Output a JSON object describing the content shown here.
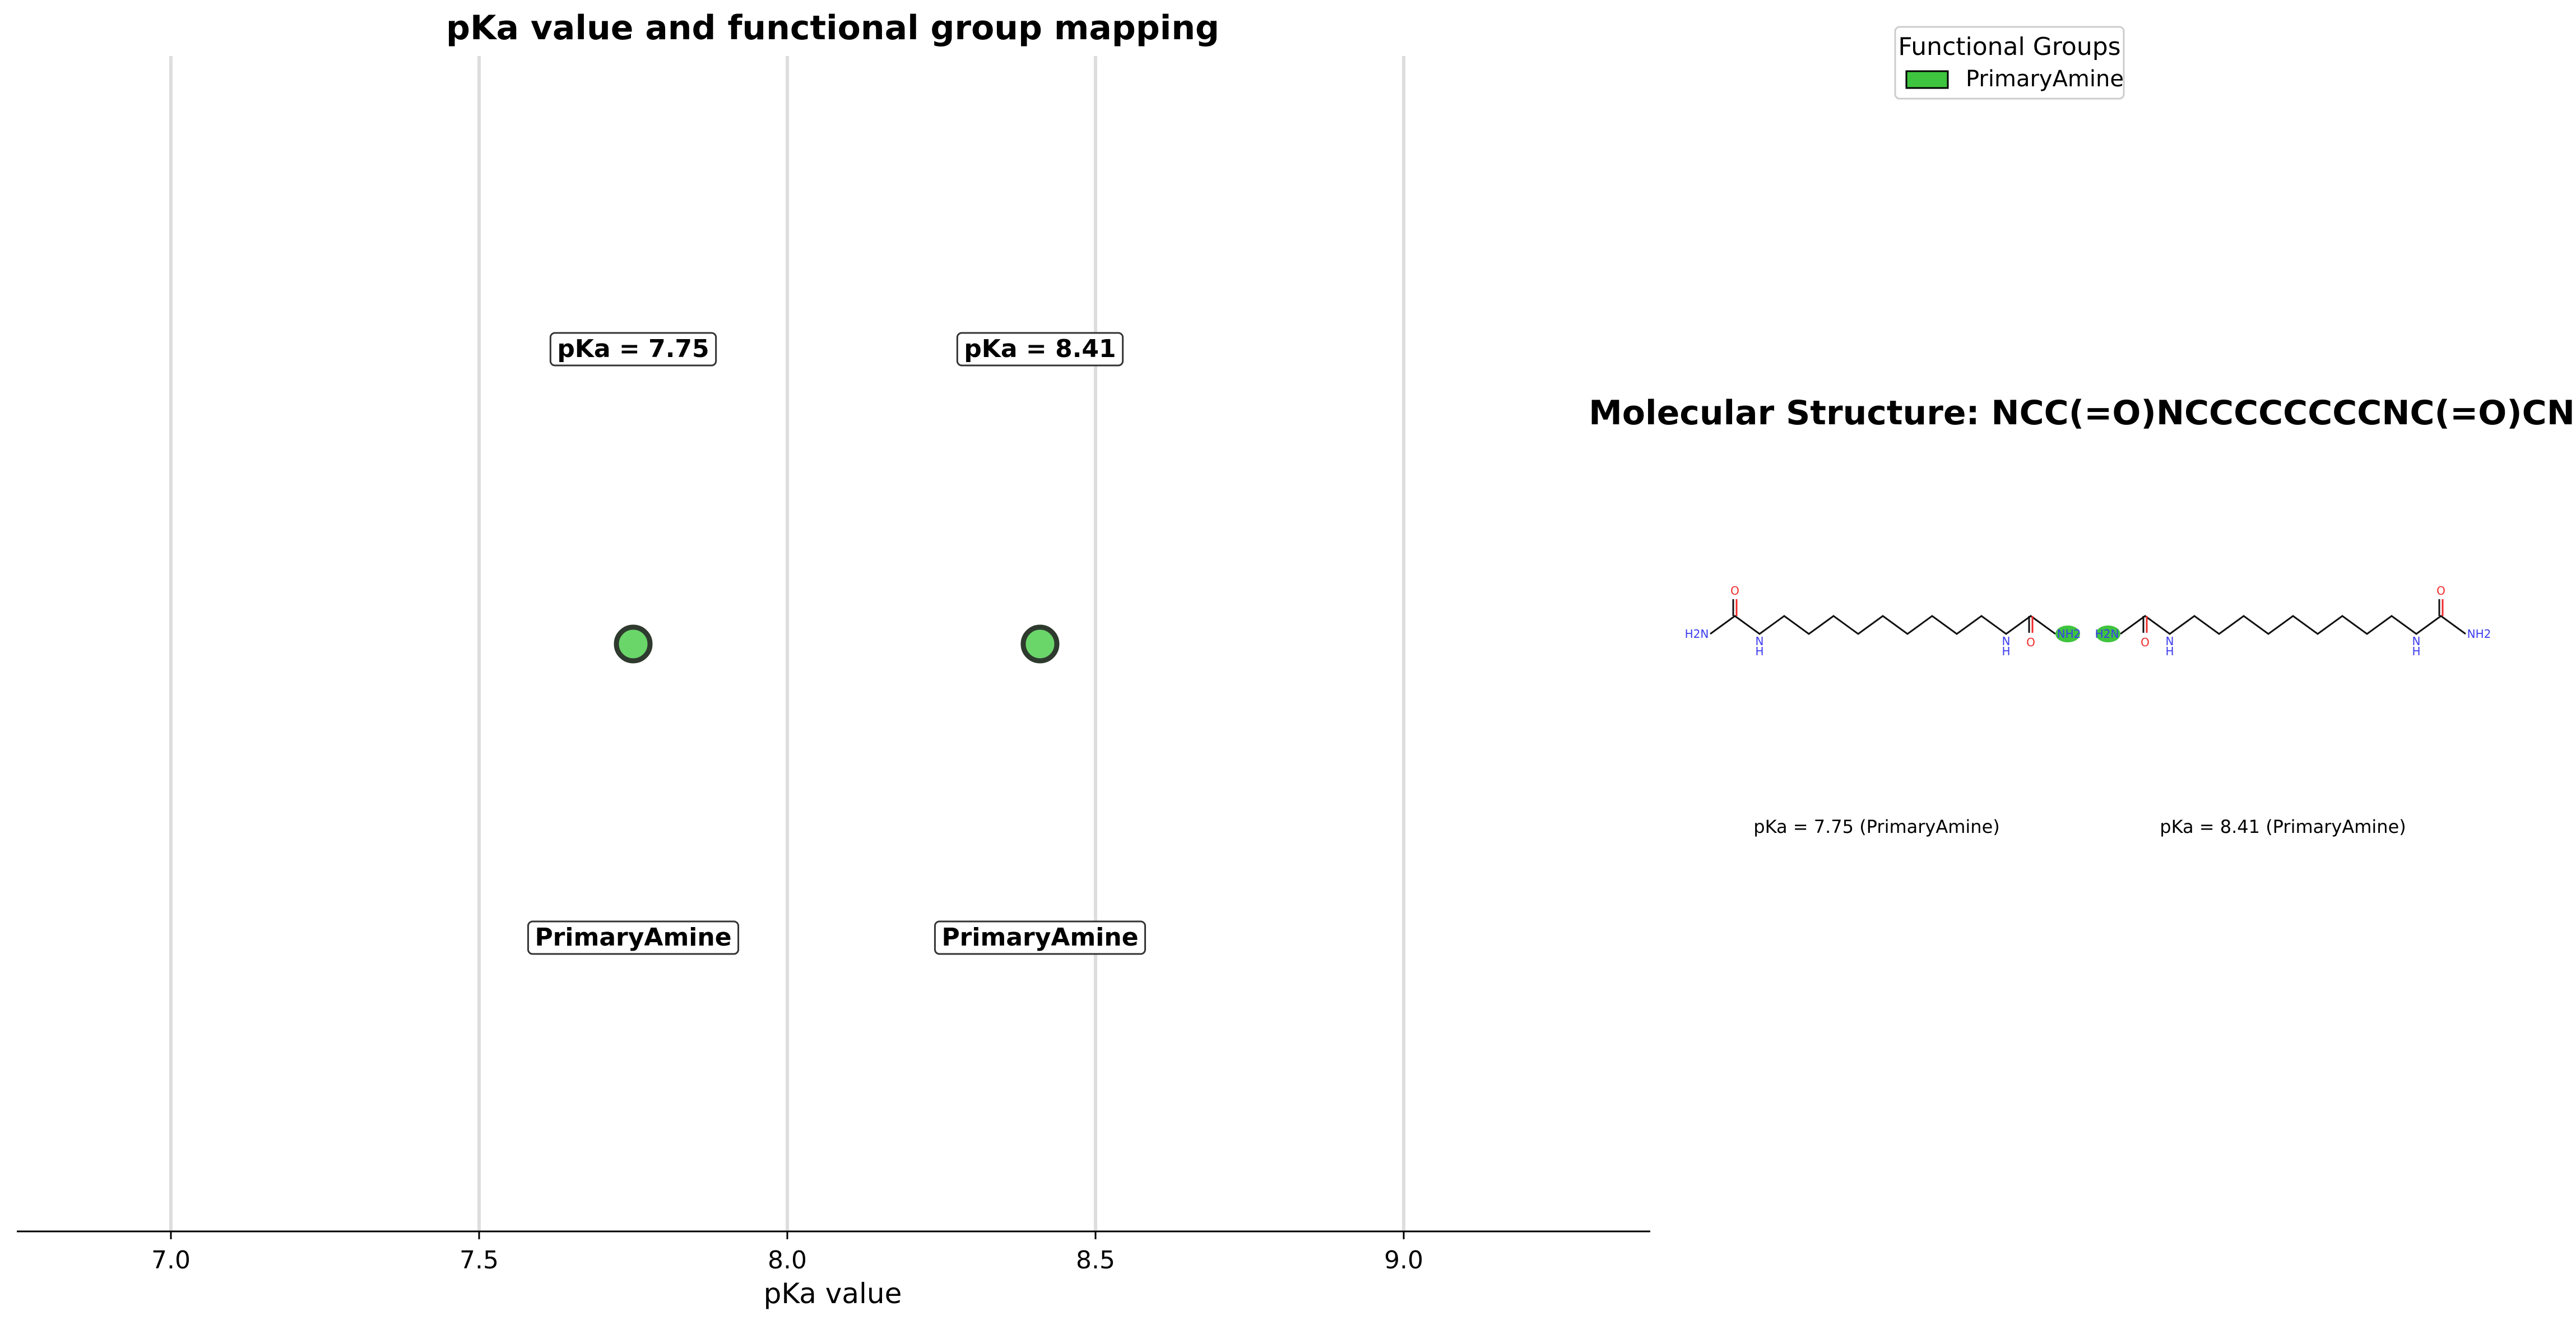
{
  "chart_data": [
    {
      "type": "scatter",
      "title": "pKa value and functional group mapping",
      "xlabel": "pKa value",
      "xlim": [
        6.75,
        9.4
      ],
      "x_ticks": [
        7.0,
        7.5,
        8.0,
        8.5,
        9.0
      ],
      "x_tick_labels": [
        "7.0",
        "7.5",
        "8.0",
        "8.5",
        "9.0"
      ],
      "grid": "vertical lines at major ticks",
      "points": [
        {
          "x": 7.75,
          "group": "PrimaryAmine",
          "pka_label": "pKa = 7.75",
          "group_label": "PrimaryAmine"
        },
        {
          "x": 8.41,
          "group": "PrimaryAmine",
          "pka_label": "pKa = 8.41",
          "group_label": "PrimaryAmine"
        }
      ],
      "point_color": "#6ad66a",
      "point_edge_color": "#2f3a2f",
      "legend": {
        "title": "Functional Groups",
        "placement": "top-right",
        "entries": [
          {
            "label": "PrimaryAmine",
            "color": "#3ec43e"
          }
        ]
      }
    }
  ],
  "molecule_panel": {
    "title": "Molecular Structure: NCC(=O)NCCCCCCCCNC(=O)CN",
    "structures": [
      {
        "caption": "pKa = 7.75 (PrimaryAmine)",
        "highlight": "right-terminal-amine"
      },
      {
        "caption": "pKa = 8.41 (PrimaryAmine)",
        "highlight": "left-terminal-amine"
      }
    ],
    "atom_labels": {
      "amine": "NH2",
      "amine_mirrored": "H2N",
      "nitrogen": "N",
      "hydrogen": "H",
      "oxygen": "O",
      "nh": "NH"
    },
    "highlight_color": "#3ec43e",
    "nitrogen_color": "#3a3af0",
    "oxygen_color": "#f02a2a"
  }
}
